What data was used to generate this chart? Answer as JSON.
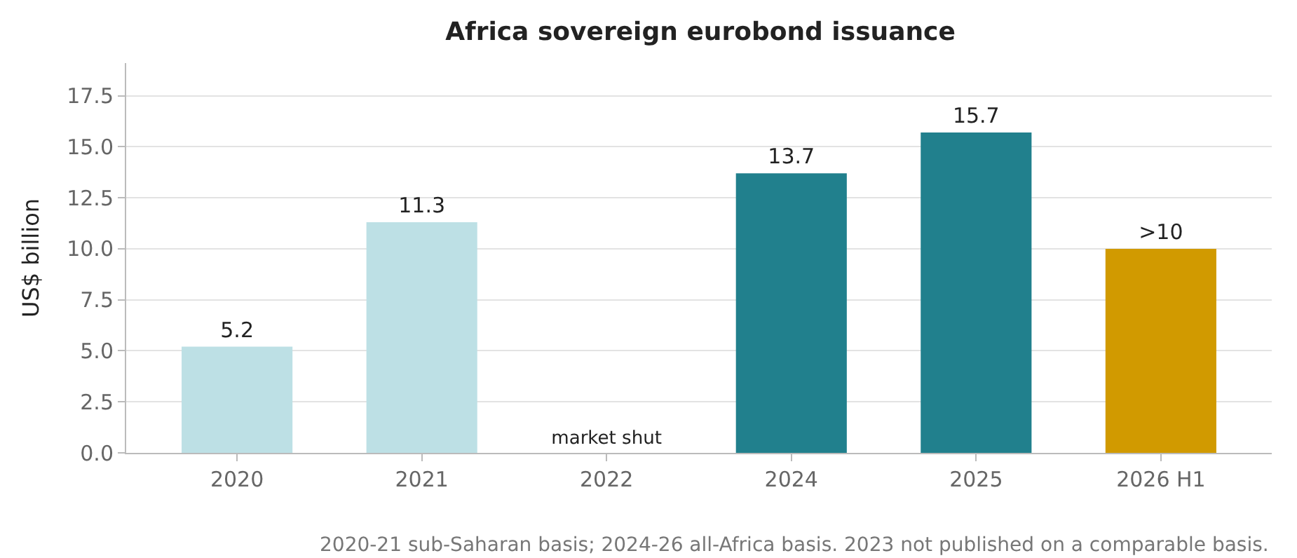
{
  "chart_data": {
    "type": "bar",
    "title": "Africa sovereign eurobond issuance",
    "ylabel": "US$ billion",
    "categories": [
      "2020",
      "2021",
      "2022",
      "2024",
      "2025",
      "2026 H1"
    ],
    "values": [
      5.2,
      11.3,
      0,
      13.7,
      15.7,
      10
    ],
    "colors": [
      "#bde0e5",
      "#bde0e5",
      "#bde0e5",
      "#21808d",
      "#21808d",
      "#d19a00"
    ],
    "value_labels": [
      "5.2",
      "11.3",
      "market shut",
      "13.7",
      "15.7",
      ">10"
    ],
    "ylim": [
      0,
      19.1
    ],
    "yticks": [
      {
        "value": 0,
        "label": "0.0"
      },
      {
        "value": 2.5,
        "label": "2.5"
      },
      {
        "value": 5,
        "label": "5.0"
      },
      {
        "value": 7.5,
        "label": "7.5"
      },
      {
        "value": 10,
        "label": "10.0"
      },
      {
        "value": 12.5,
        "label": "12.5"
      },
      {
        "value": 15,
        "label": "15.0"
      },
      {
        "value": 17.5,
        "label": "17.5"
      }
    ],
    "grid": "y",
    "annotations": [
      "2020-21 sub-Saharan basis; 2024-26 all-Africa basis. 2023 not published on a comparable basis."
    ]
  }
}
